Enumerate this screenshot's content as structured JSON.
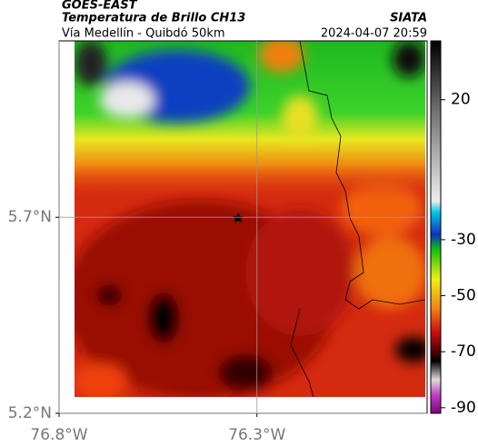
{
  "header": {
    "title": "GOES-EAST",
    "subtitle": "Temperatura de Brillo CH13",
    "source": "SIATA",
    "route": "Vía Medellín - Quibdó 50km",
    "timestamp": "2024-04-07 20:59"
  },
  "chart_data": {
    "type": "map",
    "xlim": [
      -76.8,
      -75.87
    ],
    "ylim": [
      5.2,
      6.15
    ],
    "xticks": [
      {
        "value": -76.8,
        "label": "76.8°W"
      },
      {
        "value": -76.3,
        "label": "76.3°W"
      }
    ],
    "yticks": [
      {
        "value": 5.2,
        "label": "5.2°N"
      },
      {
        "value": 5.7,
        "label": "5.7°N"
      }
    ],
    "grid": true,
    "colorbar": {
      "lim": [
        -92,
        41
      ],
      "ticks": [
        20,
        -30,
        -50,
        -70,
        -90
      ]
    }
  }
}
